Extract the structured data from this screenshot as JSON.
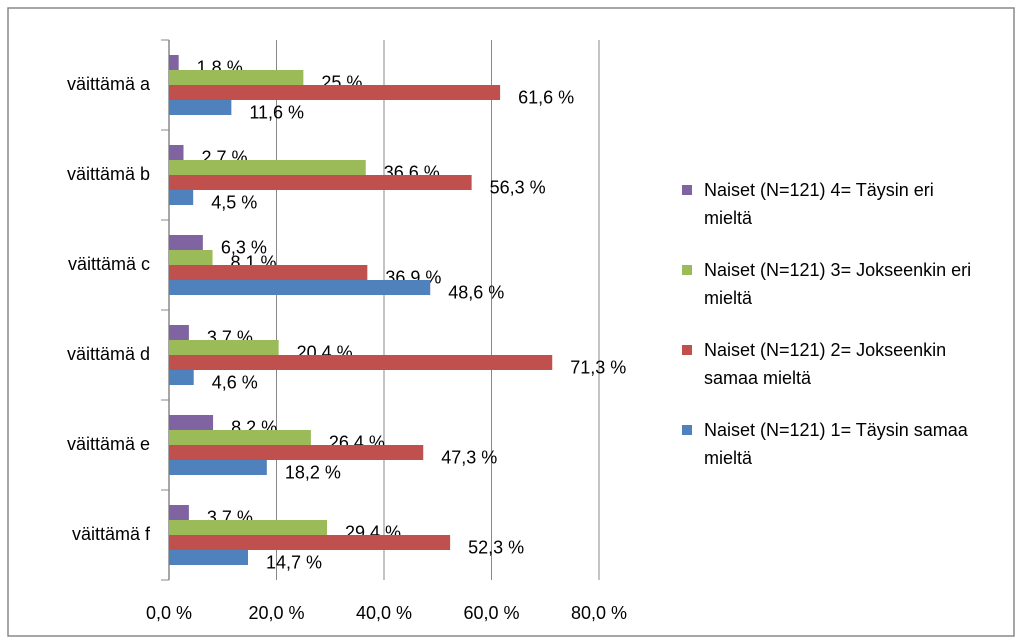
{
  "chart_data": {
    "type": "barh",
    "categories": [
      "väittämä a",
      "väittämä b",
      "väittämä c",
      "väittämä d",
      "väittämä e",
      "väittämä f"
    ],
    "series": [
      {
        "name": "Naiset (N=121) 4= Täysin eri mieltä",
        "color": "#8064a2",
        "values": [
          1.8,
          2.7,
          6.3,
          3.7,
          8.2,
          3.7
        ],
        "value_labels": [
          "1,8 %",
          "2,7 %",
          "6,3 %",
          "3,7 %",
          "8,2 %",
          "3,7 %"
        ]
      },
      {
        "name": "Naiset (N=121) 3= Jokseenkin eri mieltä",
        "color": "#9bbb59",
        "values": [
          25,
          36.6,
          8.1,
          20.4,
          26.4,
          29.4
        ],
        "value_labels": [
          "25 %",
          "36,6 %",
          "8,1 %",
          "20,4 %",
          "26,4 %",
          "29,4 %"
        ]
      },
      {
        "name": "Naiset (N=121) 2= Jokseenkin samaa mieltä",
        "color": "#c0504d",
        "values": [
          61.6,
          56.3,
          36.9,
          71.3,
          47.3,
          52.3
        ],
        "value_labels": [
          "61,6 %",
          "56,3 %",
          "36,9 %",
          "71,3 %",
          "47,3 %",
          "52,3 %"
        ]
      },
      {
        "name": "Naiset (N=121) 1= Täysin samaa mieltä",
        "color": "#4f81bd",
        "values": [
          11.6,
          4.5,
          48.6,
          4.6,
          18.2,
          14.7
        ],
        "value_labels": [
          "11,6 %",
          "4,5 %",
          "48,6 %",
          "4,6 %",
          "18,2 %",
          "14,7 %"
        ]
      }
    ],
    "xlim": [
      0,
      80
    ],
    "xticks": [
      {
        "value": 0,
        "label": "0,0 %"
      },
      {
        "value": 20,
        "label": "20,0 %"
      },
      {
        "value": 40,
        "label": "40,0 %"
      },
      {
        "value": 60,
        "label": "60,0 %"
      },
      {
        "value": 80,
        "label": "80,0 %"
      }
    ],
    "grid": true,
    "legend": "right"
  }
}
